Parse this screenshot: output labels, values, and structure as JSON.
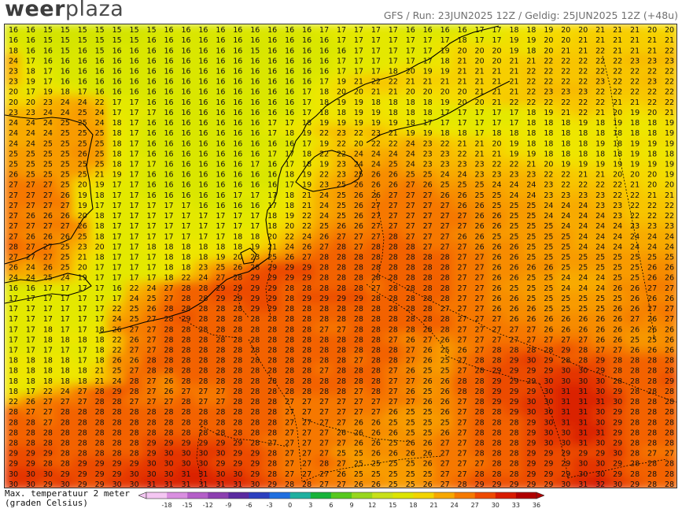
{
  "header": {
    "logo_part1": "weer",
    "logo_part2": "plaza",
    "run_info": "GFS / Run: 23JUN2025 12Z / Geldig: 25JUN2025 12Z (+48u)"
  },
  "legend": {
    "title_line1": "Max. temperatuur 2 meter",
    "title_line2": "(graden Celsius)",
    "ticks": [
      "-18",
      "-15",
      "-12",
      "-9",
      "-6",
      "-3",
      "0",
      "3",
      "6",
      "9",
      "12",
      "15",
      "18",
      "21",
      "24",
      "27",
      "30",
      "33",
      "36"
    ],
    "colors": [
      "#f4c6f2",
      "#d98fe0",
      "#b45fc8",
      "#8c3fb0",
      "#5b2aa0",
      "#2c3fbf",
      "#1f6fe0",
      "#1fb0a0",
      "#18b33a",
      "#57c81e",
      "#98d61e",
      "#c8e01a",
      "#dde400",
      "#f2d400",
      "#f7a800",
      "#f57a00",
      "#ee4a00",
      "#d81c00",
      "#b00000"
    ]
  },
  "map_values": [
    "16 16 15 15 15 15 15 15 15 16 16 16 16 16 16 16 16 16 17 17 17 17 17 16 16 16 16 17 17 18 18 19 20 20 21 21 21 20 20",
    "16 16 15 15 15 15 15 15 16 16 16 16 16 16 16 16 16 16 16 17 17 17 17 17 17 17 18 17 17 19 19 20 20 21 21 21 21 21 21",
    "18 16 16 15 16 15 16 16 16 16 16 16 16 16 15 16 16 16 16 16 17 17 17 17 17 19 20 20 20 19 18 20 21 21 22 21 21 21 22",
    "24 17 16 16 16 16 16 16 16 16 16 16 16 16 16 16 16 16 16 17 17 17 17 17 17 18 21 20 20 21 21 22 22 22 22 22 23 23 23",
    "23 18 17 16 16 16 16 16 16 16 16 16 16 16 16 16 16 16 16 17 17 17 18 20 19 19 21 21 21 21 22 22 22 22 22 22 22 22 22",
    "23 19 17 16 16 16 16 16 16 16 16 16 16 16 16 16 16 16 17 19 21 22 22 21 21 21 21 21 21 21 22 22 22 22 23 22 22 23 22",
    "20 17 19 18 17 16 16 16 16 16 16 16 16 16 16 16 16 17 18 20 20 21 21 20 20 20 20 21 21 21 22 23 23 23 22 22 22 22 22",
    "20 20 23 24 24 22 17 17 16 16 16 16 16 16 16 16 16 17 18 19 19 18 18 18 18 19 20 20 21 22 22 22 22 22 22 21 21 22 22",
    "23 23 24 24 25 24 17 17 17 16 16 16 16 16 16 16 16 17 18 18 19 19 18 18 18 17 17 17 17 17 18 19 21 22 21 20 19 20 21",
    "24 24 24 25 25 24 18 17 16 16 16 16 16 16 16 17 17 18 19 19 19 19 19 18 17 17 17 17 17 17 18 18 18 19 18 19 18 18 19",
    "24 24 24 25 25 25 18 17 16 16 16 16 16 16 16 17 18 19 22 23 22 23 21 19 19 18 18 17 18 18 18 18 18 18 18 18 18 18 19",
    "24 24 25 25 25 25 18 17 16 16 16 16 16 16 16 16 16 17 19 22 20 22 22 24 23 22 21 21 20 19 18 18 18 18 19 18 19 19 19",
    "25 25 25 25 26 25 18 17 16 16 16 16 16 16 16 17 17 18 22 22 24 24 24 24 23 23 22 21 21 19 19 18 18 18 18 18 19 18 18",
    "25 25 25 25 25 25 18 17 17 16 16 16 16 16 17 16 17 18 19 23 24 24 25 24 23 23 23 23 22 22 21 20 19 19 19 19 19 19 19",
    "26 25 25 25 25 21 19 17 16 16 16 16 16 16 16 16 18 19 22 23 25 26 26 25 25 24 24 23 23 23 23 22 22 21 21 20 20 20 19",
    "27 27 27 25 20 19 17 17 16 16 16 16 16 16 16 16 17 19 23 25 26 26 26 27 26 25 25 25 24 24 24 23 22 22 22 22 21 20 20",
    "27 27 27 26 19 18 17 17 16 16 16 16 16 17 17 17 18 21 24 25 26 26 27 27 27 26 26 25 25 24 24 23 23 23 23 22 22 21 21",
    "27 27 27 27 19 17 17 17 17 17 17 16 16 16 16 17 18 21 24 25 26 27 27 27 27 27 26 26 25 25 25 24 24 24 23 23 22 22 22",
    "27 26 26 26 20 18 17 17 17 17 17 17 17 17 17 18 19 22 24 25 26 27 27 27 27 27 27 26 26 25 25 24 24 24 24 23 22 22 22",
    "27 27 27 27 26 18 17 17 17 17 17 17 17 17 17 18 20 22 25 26 26 27 27 27 27 27 27 26 26 25 25 25 24 24 24 24 23 23 23",
    "27 26 26 26 25 18 17 17 17 17 17 17 17 18 18 20 22 24 26 27 27 27 28 27 27 27 26 26 25 25 25 25 25 24 24 24 24 24 24",
    "28 27 27 25 23 20 17 17 18 18 18 18 18 18 19 21 24 26 27 28 27 28 28 28 27 27 27 26 26 26 25 25 25 24 24 24 24 24 24",
    "27 27 27 25 21 18 17 17 17 18 18 18 19 20 23 25 26 27 28 28 28 28 28 28 28 28 27 27 26 26 25 25 25 25 25 25 25 25 25",
    "26 24 26 25 20 17 17 17 17 18 18 23 25 26 28 29 29 29 28 28 28 28 28 28 28 28 27 27 26 26 26 26 25 25 25 25 25 26 26",
    "24 24 25 24 19 17 17 17 17 18 22 24 27 28 29 29 29 29 28 28 28 28 28 28 28 28 27 27 26 26 25 25 24 24 24 25 25 26 26",
    "16 16 17 17 17 17 16 22 24 27 28 28 29 29 29 29 28 28 28 28 28 27 28 28 28 28 27 27 26 25 25 25 24 24 24 26 26 27 27",
    "17 17 17 17 17 17 17 24 25 27 28 28 29 29 29 29 28 29 29 29 29 28 28 28 28 28 27 27 26 26 25 25 25 25 25 25 26 26 26",
    "17 17 17 17 17 17 22 25 26 28 28 28 28 28 29 29 28 28 28 28 28 28 28 28 28 27 27 27 26 26 26 25 25 25 25 26 26 27 27",
    "17 17 17 17 17 17 24 25 27 28 29 28 28 28 28 28 28 28 28 28 28 28 28 28 28 28 27 27 27 26 26 26 26 26 26 26 27 26 27",
    "17 17 18 17 17 18 26 27 27 28 28 28 28 28 28 28 28 28 27 27 28 28 28 28 28 28 27 27 27 27 27 26 26 26 26 26 26 26 26",
    "17 17 18 18 18 18 22 26 27 28 28 28 28 28 28 28 28 28 28 28 28 28 27 26 27 26 27 27 27 27 27 27 27 27 26 26 25 25 26",
    "17 17 17 17 17 18 22 27 27 28 28 28 28 28 28 28 28 28 28 28 28 28 28 27 26 25 26 27 28 28 28 28 29 28 27 27 26 26 26",
    "18 18 18 18 17 18 26 26 28 28 28 28 28 28 28 28 28 28 28 28 27 28 28 27 26 25 27 28 28 29 30 29 28 28 29 28 28 28 28",
    "18 18 18 18 18 21 25 27 28 28 28 28 28 28 28 28 28 28 27 28 28 28 27 26 25 25 27 28 29 29 29 29 30 30 29 28 28 28 28",
    "18 18 18 18 18 21 24 28 27 26 28 28 28 28 28 28 28 28 28 28 28 28 27 27 26 26 28 28 29 29 29 30 30 30 30 28 28 28 29",
    "18 17 22 24 27 28 29 28 27 26 27 27 27 28 28 28 28 28 28 28 27 28 27 26 25 26 28 28 29 29 29 30 31 31 30 29 28 28 28",
    "22 26 27 27 27 28 28 27 27 27 28 27 27 28 28 28 27 27 27 27 27 27 27 27 26 26 27 28 29 29 30 30 31 31 31 30 28 28 28",
    "28 27 27 28 28 28 28 28 28 28 28 28 28 28 28 28 27 27 27 27 27 27 26 25 25 26 27 28 28 29 30 30 31 31 30 29 28 28 28",
    "28 28 27 28 28 28 28 28 28 28 28 28 28 28 28 28 27 27 27 27 26 26 25 25 25 25 27 28 28 28 29 30 31 31 30 29 28 28 28",
    "28 28 28 28 28 28 28 28 28 28 28 28 28 28 28 28 27 27 27 26 26 26 26 25 25 26 27 28 28 28 29 30 30 31 31 29 28 28 28",
    "28 28 28 28 28 28 28 28 29 29 29 29 29 29 28 27 27 27 27 27 26 26 25 26 26 27 27 28 28 28 29 30 30 31 30 29 28 28 28",
    "29 29 29 28 28 28 28 28 29 30 30 30 30 29 29 28 27 27 27 25 25 26 26 26 26 27 27 28 28 28 29 29 29 29 29 30 28 27 27",
    "29 29 28 28 29 29 29 29 30 30 30 30 29 29 29 28 27 27 28 27 25 25 25 25 26 27 27 27 28 28 29 29 29 30 30 29 28 28 28",
    "30 30 30 29 29 29 29 30 30 30 31 31 30 30 29 28 27 27 27 26 25 25 25 25 25 27 27 28 28 28 29 29 29 30 30 29 28 28 28",
    "30 30 29 30 29 29 30 30 31 31 31 31 31 31 30 29 28 28 27 27 26 26 25 25 26 27 28 29 29 29 29 29 30 31 32 30 29 28 28"
  ]
}
